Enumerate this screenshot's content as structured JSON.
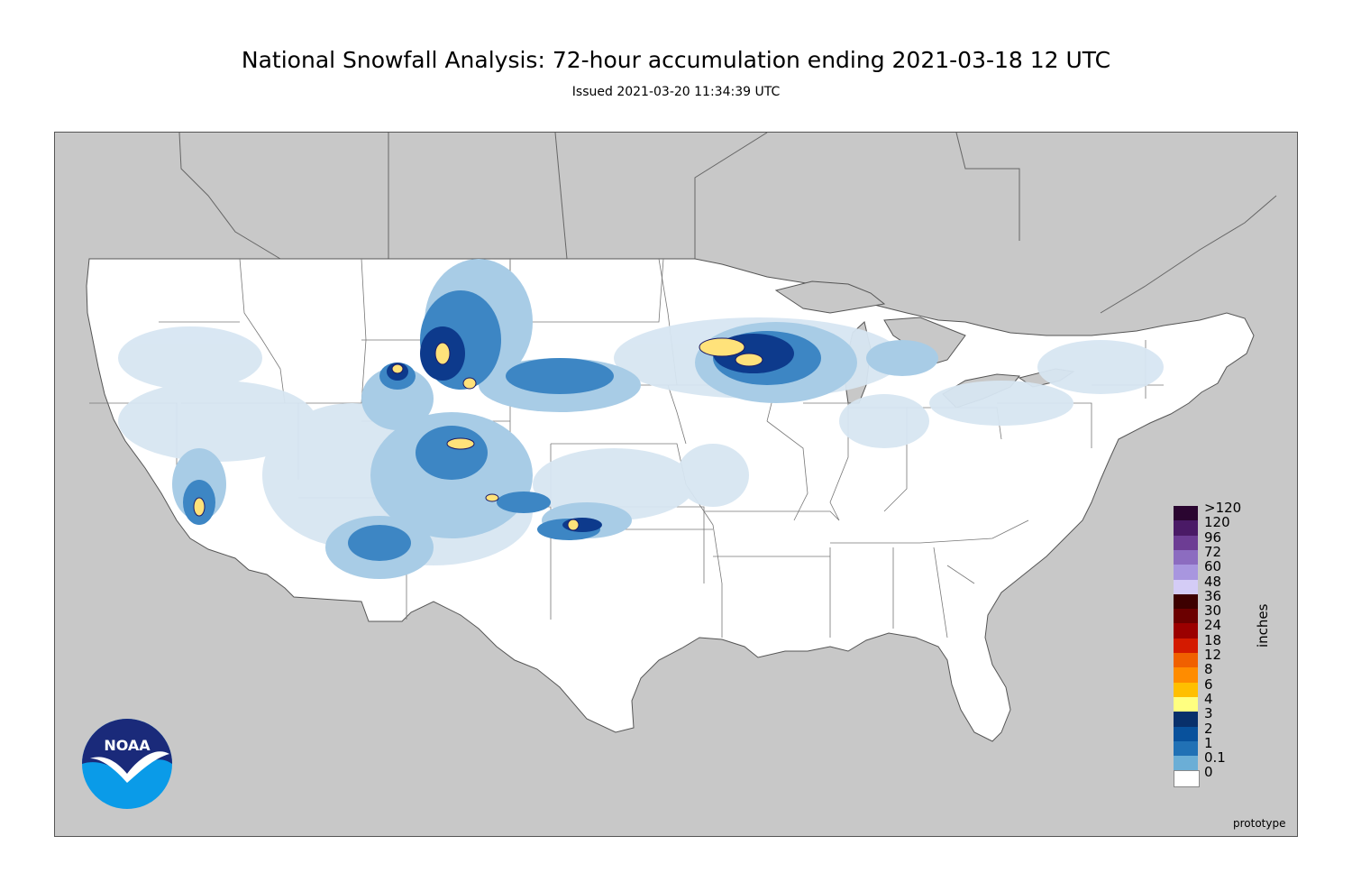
{
  "header": {
    "title": "National Snowfall Analysis: 72-hour accumulation ending 2021-03-18 12 UTC",
    "subtitle": "Issued 2021-03-20 11:34:39 UTC"
  },
  "legend": {
    "units": "inches",
    "bins": [
      {
        "label": ">120",
        "color": "#2a0530"
      },
      {
        "label": "120",
        "color": "#4a1a66"
      },
      {
        "label": "96",
        "color": "#6d3d94"
      },
      {
        "label": "72",
        "color": "#8c6cc0"
      },
      {
        "label": "60",
        "color": "#a896df"
      },
      {
        "label": "48",
        "color": "#d4ccf6"
      },
      {
        "label": "36",
        "color": "#3d0000"
      },
      {
        "label": "30",
        "color": "#6b0000"
      },
      {
        "label": "24",
        "color": "#9b0000"
      },
      {
        "label": "18",
        "color": "#d41a00"
      },
      {
        "label": "12",
        "color": "#f06000"
      },
      {
        "label": "8",
        "color": "#ff8c00"
      },
      {
        "label": "6",
        "color": "#ffbf00"
      },
      {
        "label": "4",
        "color": "#ffff80"
      },
      {
        "label": "3",
        "color": "#08306b"
      },
      {
        "label": "2",
        "color": "#08519c"
      },
      {
        "label": "1",
        "color": "#2171b5"
      },
      {
        "label": "0.1",
        "color": "#6baed6"
      },
      {
        "label": "0",
        "color": "#ffffff"
      }
    ]
  },
  "note": "prototype",
  "logo": {
    "text": "NOAA"
  },
  "colors": {
    "land_outside": "#c8c8c8",
    "usa_land": "#ffffff",
    "water": "#c8c8c8"
  }
}
